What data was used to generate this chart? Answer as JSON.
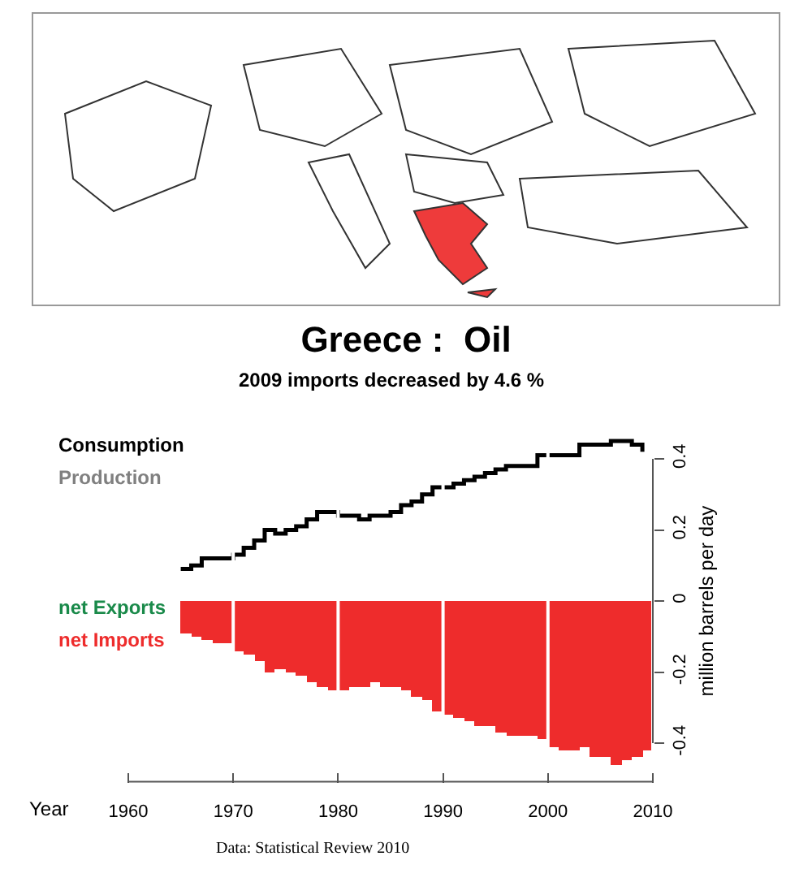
{
  "chart_data": {
    "type": "bar",
    "title": "Greece :  Oil",
    "subtitle": "2009 imports decreased by 4.6 %",
    "xlabel": "Year",
    "ylabel": "million barrels per day",
    "x": [
      1965,
      1966,
      1967,
      1968,
      1969,
      1970,
      1971,
      1972,
      1973,
      1974,
      1975,
      1976,
      1977,
      1978,
      1979,
      1980,
      1981,
      1982,
      1983,
      1984,
      1985,
      1986,
      1987,
      1988,
      1989,
      1990,
      1991,
      1992,
      1993,
      1994,
      1995,
      1996,
      1997,
      1998,
      1999,
      2000,
      2001,
      2002,
      2003,
      2004,
      2005,
      2006,
      2007,
      2008,
      2009
    ],
    "series": [
      {
        "name": "Consumption",
        "type": "step",
        "color": "#000000",
        "values": [
          0.09,
          0.1,
          0.12,
          0.12,
          0.12,
          0.13,
          0.15,
          0.17,
          0.2,
          0.19,
          0.2,
          0.21,
          0.23,
          0.25,
          0.25,
          0.24,
          0.24,
          0.23,
          0.24,
          0.24,
          0.25,
          0.27,
          0.28,
          0.3,
          0.32,
          0.32,
          0.33,
          0.34,
          0.35,
          0.36,
          0.37,
          0.38,
          0.38,
          0.38,
          0.41,
          0.41,
          0.41,
          0.41,
          0.44,
          0.44,
          0.44,
          0.45,
          0.45,
          0.44,
          0.42
        ]
      },
      {
        "name": "Production",
        "type": "step",
        "color": "#808080",
        "values": [
          null,
          null,
          null,
          null,
          null,
          null,
          null,
          null,
          null,
          null,
          null,
          null,
          null,
          null,
          null,
          null,
          null,
          null,
          null,
          null,
          null,
          null,
          null,
          null,
          null,
          null,
          null,
          null,
          null,
          null,
          null,
          null,
          null,
          null,
          null,
          null,
          null,
          null,
          null,
          null,
          null,
          null,
          null,
          null,
          null
        ]
      },
      {
        "name": "net Exports",
        "color": "#1a8a4a",
        "values": [
          null,
          null,
          null,
          null,
          null,
          null,
          null,
          null,
          null,
          null,
          null,
          null,
          null,
          null,
          null,
          null,
          null,
          null,
          null,
          null,
          null,
          null,
          null,
          null,
          null,
          null,
          null,
          null,
          null,
          null,
          null,
          null,
          null,
          null,
          null,
          null,
          null,
          null,
          null,
          null,
          null,
          null,
          null,
          null,
          null
        ]
      },
      {
        "name": "net Imports",
        "color": "#ee2c2c",
        "values": [
          -0.09,
          -0.1,
          -0.11,
          -0.12,
          -0.12,
          -0.14,
          -0.15,
          -0.17,
          -0.2,
          -0.19,
          -0.2,
          -0.21,
          -0.23,
          -0.24,
          -0.25,
          -0.25,
          -0.24,
          -0.24,
          -0.23,
          -0.24,
          -0.24,
          -0.25,
          -0.27,
          -0.28,
          -0.31,
          -0.32,
          -0.33,
          -0.34,
          -0.35,
          -0.35,
          -0.37,
          -0.38,
          -0.38,
          -0.38,
          -0.39,
          -0.41,
          -0.42,
          -0.42,
          -0.41,
          -0.44,
          -0.44,
          -0.46,
          -0.45,
          -0.44,
          -0.42
        ]
      }
    ],
    "xlim": [
      1960,
      2010
    ],
    "xticks": [
      1960,
      1970,
      1980,
      1990,
      2000,
      2010
    ],
    "ylim": [
      -0.48,
      0.48
    ],
    "yticks": [
      -0.4,
      -0.2,
      0.0,
      0.2,
      0.4
    ],
    "grid": "x",
    "legend": "left",
    "annotations": [
      "Data: Statistical Review 2010"
    ]
  }
}
